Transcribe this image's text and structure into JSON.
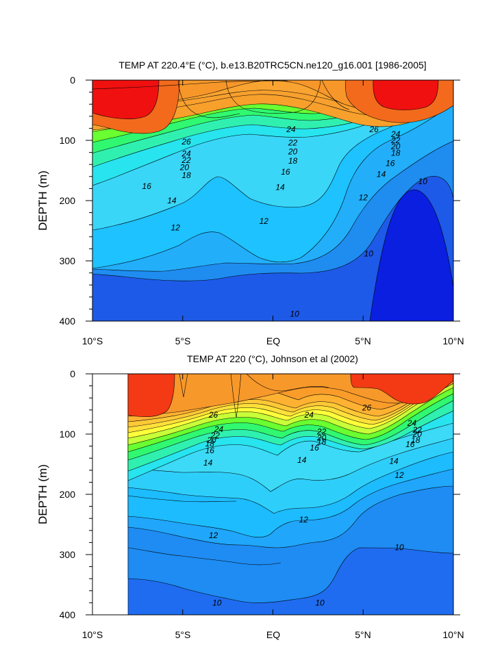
{
  "chart_data": [
    {
      "type": "heatmap",
      "subtype": "filled-contour",
      "title": "TEMP AT 220.4°E (°C), b.e13.B20TRC5CN.ne120_g16.001 [1986-2005]",
      "ylabel": "DEPTH (m)",
      "x_ticks": [
        "10°S",
        "5°S",
        "EQ",
        "5°N",
        "10°N"
      ],
      "x_values": [
        -10,
        -5,
        0,
        5,
        10
      ],
      "y_ticks": [
        "0",
        "100",
        "200",
        "300",
        "400"
      ],
      "y_values": [
        0,
        100,
        200,
        300,
        400
      ],
      "xlim": [
        -10,
        10
      ],
      "ylim": [
        400,
        0
      ],
      "contour_interval": 1,
      "contour_labels": [
        {
          "text": "26",
          "lat": -4.8,
          "depth": 102
        },
        {
          "text": "24",
          "lat": -4.8,
          "depth": 122
        },
        {
          "text": "22",
          "lat": -4.8,
          "depth": 133
        },
        {
          "text": "20",
          "lat": -4.9,
          "depth": 145
        },
        {
          "text": "18",
          "lat": -4.8,
          "depth": 158
        },
        {
          "text": "16",
          "lat": -7.0,
          "depth": 176
        },
        {
          "text": "14",
          "lat": -5.6,
          "depth": 200
        },
        {
          "text": "12",
          "lat": -5.4,
          "depth": 245
        },
        {
          "text": "24",
          "lat": 1.0,
          "depth": 82
        },
        {
          "text": "22",
          "lat": 1.1,
          "depth": 104
        },
        {
          "text": "20",
          "lat": 1.1,
          "depth": 119
        },
        {
          "text": "18",
          "lat": 1.1,
          "depth": 134
        },
        {
          "text": "16",
          "lat": 0.7,
          "depth": 152
        },
        {
          "text": "14",
          "lat": 0.4,
          "depth": 178
        },
        {
          "text": "12",
          "lat": -0.5,
          "depth": 234
        },
        {
          "text": "12",
          "lat": 5.0,
          "depth": 195
        },
        {
          "text": "14",
          "lat": 6.0,
          "depth": 156
        },
        {
          "text": "16",
          "lat": 6.5,
          "depth": 138
        },
        {
          "text": "18",
          "lat": 6.8,
          "depth": 121
        },
        {
          "text": "20",
          "lat": 6.8,
          "depth": 110
        },
        {
          "text": "22",
          "lat": 6.8,
          "depth": 100
        },
        {
          "text": "24",
          "lat": 6.8,
          "depth": 90
        },
        {
          "text": "26",
          "lat": 5.6,
          "depth": 82
        },
        {
          "text": "10",
          "lat": 8.3,
          "depth": 168
        },
        {
          "text": "10",
          "lat": 5.3,
          "depth": 288
        },
        {
          "text": "10",
          "lat": 1.2,
          "depth": 388
        }
      ]
    },
    {
      "type": "heatmap",
      "subtype": "filled-contour",
      "title": "TEMP AT 220 (°C), Johnson et al (2002)",
      "ylabel": "DEPTH (m)",
      "x_ticks": [
        "10°S",
        "5°S",
        "EQ",
        "5°N",
        "10°N"
      ],
      "x_values": [
        -10,
        -5,
        0,
        5,
        10
      ],
      "y_ticks": [
        "0",
        "100",
        "200",
        "300",
        "400"
      ],
      "y_values": [
        0,
        100,
        200,
        300,
        400
      ],
      "xlim": [
        -10,
        10
      ],
      "ylim": [
        400,
        0
      ],
      "data_extent_lat": [
        -8,
        10
      ],
      "contour_interval": 1,
      "contour_labels": [
        {
          "text": "26",
          "lat": -3.3,
          "depth": 68
        },
        {
          "text": "24",
          "lat": -3.0,
          "depth": 92
        },
        {
          "text": "22",
          "lat": -3.2,
          "depth": 102
        },
        {
          "text": "20",
          "lat": -3.4,
          "depth": 110
        },
        {
          "text": "18",
          "lat": -3.5,
          "depth": 116
        },
        {
          "text": "16",
          "lat": -3.5,
          "depth": 127
        },
        {
          "text": "14",
          "lat": -3.6,
          "depth": 148
        },
        {
          "text": "24",
          "lat": 2.0,
          "depth": 68
        },
        {
          "text": "22",
          "lat": 2.7,
          "depth": 96
        },
        {
          "text": "20",
          "lat": 2.7,
          "depth": 106
        },
        {
          "text": "18",
          "lat": 2.7,
          "depth": 113
        },
        {
          "text": "16",
          "lat": 2.3,
          "depth": 123
        },
        {
          "text": "14",
          "lat": 1.6,
          "depth": 143
        },
        {
          "text": "12",
          "lat": 1.7,
          "depth": 242
        },
        {
          "text": "12",
          "lat": -3.3,
          "depth": 268
        },
        {
          "text": "26",
          "lat": 5.2,
          "depth": 56
        },
        {
          "text": "24",
          "lat": 7.7,
          "depth": 82
        },
        {
          "text": "22",
          "lat": 8.0,
          "depth": 93
        },
        {
          "text": "20",
          "lat": 8.0,
          "depth": 100
        },
        {
          "text": "18",
          "lat": 7.9,
          "depth": 110
        },
        {
          "text": "16",
          "lat": 7.6,
          "depth": 117
        },
        {
          "text": "14",
          "lat": 6.7,
          "depth": 145
        },
        {
          "text": "12",
          "lat": 7.0,
          "depth": 168
        },
        {
          "text": "10",
          "lat": 7.0,
          "depth": 288
        },
        {
          "text": "10",
          "lat": -3.1,
          "depth": 380
        },
        {
          "text": "10",
          "lat": 2.6,
          "depth": 380
        }
      ]
    }
  ]
}
